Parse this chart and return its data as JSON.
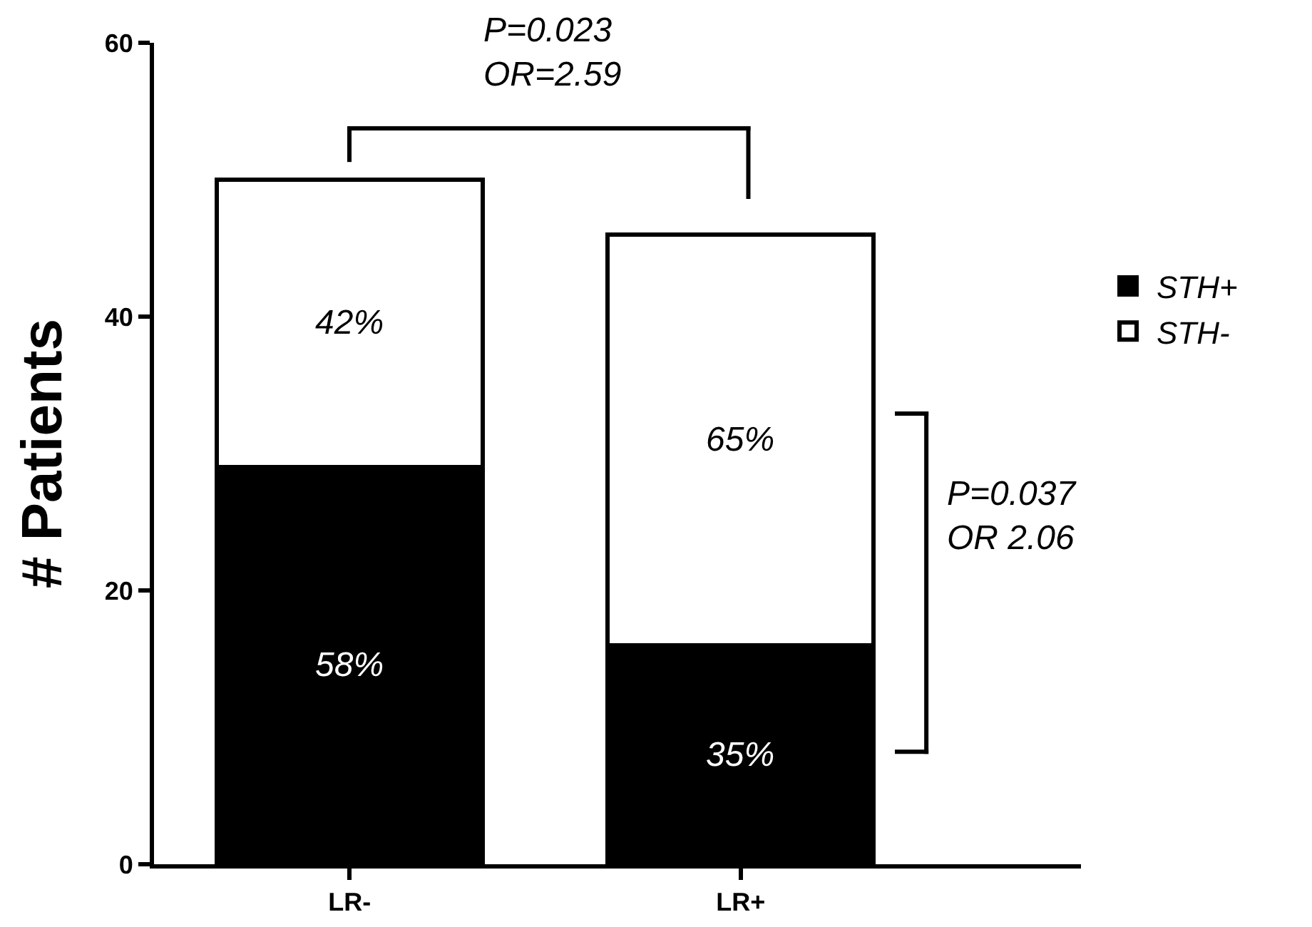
{
  "chart_data": {
    "type": "bar",
    "stacked": true,
    "ylabel": "# Patients",
    "categories": [
      "LR-",
      "LR+"
    ],
    "series": [
      {
        "name": "STH+",
        "color": "#000000",
        "values": [
          29,
          16
        ]
      },
      {
        "name": "STH-",
        "color": "#ffffff",
        "values": [
          21,
          30
        ]
      }
    ],
    "ylim": [
      0,
      60
    ],
    "yticks": [
      0,
      20,
      40,
      60
    ],
    "grid": false,
    "legend": "top right",
    "annotations": [
      "P=0.023\nOR=2.59",
      "P=0.037\nOR 2.06",
      "58%",
      "35%",
      "42%",
      "65%"
    ]
  }
}
